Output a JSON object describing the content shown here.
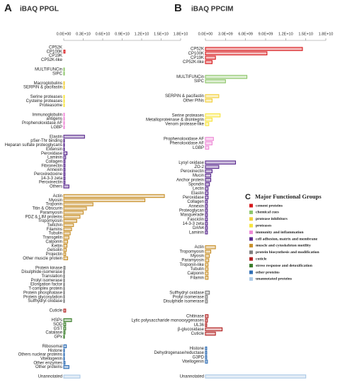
{
  "chart_data": [
    {
      "type": "bar",
      "orientation": "horizontal",
      "panel_label": "A",
      "title": "iBAQ PPGL",
      "xlim": [
        0,
        18000000000
      ],
      "xticks": [
        {
          "value": 0,
          "label": "0.0E+00"
        },
        {
          "value": 3000000000,
          "label": "0.3E+10"
        },
        {
          "value": 6000000000,
          "label": "0.6E+10"
        },
        {
          "value": 9000000000,
          "label": "0.9E+10"
        },
        {
          "value": 12000000000,
          "label": "1.2E+10"
        },
        {
          "value": 15000000000,
          "label": "1.5E+10"
        },
        {
          "value": 18000000000,
          "label": "1.8E+10"
        }
      ],
      "groups": [
        {
          "color": "#d7191c",
          "categories": [
            "CP52K",
            "CP100K",
            "CP19K",
            "CP52K-like"
          ],
          "values": [
            0,
            200000000,
            0,
            0
          ]
        },
        {
          "color": "#8dc66a",
          "categories": [
            "MULTIFUNCin",
            "SIPC"
          ],
          "values": [
            100000000,
            100000000
          ]
        },
        {
          "color": "#f2cf3a",
          "categories": [
            "Macroglobulins",
            "SERPIN & pacifastin"
          ],
          "values": [
            100000000,
            100000000
          ]
        },
        {
          "color": "#f7e43c",
          "categories": [
            "Serine proteases",
            "Cysteine proteases",
            "Proteasome"
          ],
          "values": [
            100000000,
            100000000,
            100000000
          ]
        },
        {
          "color": "#ee88d6",
          "categories": [
            "Immunoglobulin",
            "antigens",
            "Prophenoloxidase AF",
            "LGBP"
          ],
          "values": [
            100000000,
            100000000,
            100000000,
            100000000
          ]
        },
        {
          "color": "#5a2a8e",
          "categories": [
            "Elastin",
            "pSer-Thr binding",
            "Heparan sulfate proteoglycans",
            "Extensin",
            "Peroxidase",
            "Laminin",
            "Collagen",
            "Fibronectin",
            "Annexin",
            "Peroxiredoxine",
            "14-3-3 zeta",
            "Peroxinectin",
            "Others"
          ],
          "values": [
            3200000000,
            100000000,
            100000000,
            100000000,
            500000000,
            300000000,
            200000000,
            200000000,
            200000000,
            200000000,
            200000000,
            200000000,
            800000000
          ]
        },
        {
          "color": "#c8902a",
          "categories": [
            "Actin",
            "Myosin",
            "Troponin",
            "Titin & Obscurin",
            "Paramyosin",
            "PDZ & LIM proteins",
            "Tropomyosin",
            "Twitchin",
            "Filamins",
            "Tubulin",
            "Transgelin",
            "Calponin",
            "Kettin",
            "Gelsolin",
            "Projectin",
            "Other muscle  protein"
          ],
          "values": [
            15500000000,
            12500000000,
            4500000000,
            3500000000,
            3000000000,
            2500000000,
            2000000000,
            1500000000,
            1200000000,
            1000000000,
            800000000,
            600000000,
            500000000,
            400000000,
            300000000,
            600000000
          ]
        },
        {
          "color": "#7f7f7f",
          "categories": [
            "Protein kinase",
            "Disulphide-isomerase",
            "Translation",
            "Prolyl isomerase",
            "Elongation factor",
            "T-complex protein",
            "Protein phosphatase",
            "Protein glycosylation",
            "Sulfhydryl oxidase"
          ],
          "values": [
            200000000,
            100000000,
            100000000,
            100000000,
            100000000,
            100000000,
            100000000,
            100000000,
            100000000
          ]
        },
        {
          "color": "#b22222",
          "categories": [
            "Cuticle"
          ],
          "values": [
            300000000
          ]
        },
        {
          "color": "#3a7d2a",
          "categories": [
            "HSPs",
            "SOD",
            "GST",
            "Catalase",
            "GPx"
          ],
          "values": [
            1200000000,
            300000000,
            300000000,
            200000000,
            100000000
          ]
        },
        {
          "color": "#2e6db4",
          "categories": [
            "Ribosomal",
            "Histone",
            "Others nuclear proteins",
            "Vitellogenin",
            "Other enzymes",
            "Other proteins"
          ],
          "values": [
            400000000,
            100000000,
            100000000,
            100000000,
            200000000,
            800000000
          ]
        },
        {
          "color": "#a9c8e6",
          "categories": [
            "Unannotated"
          ],
          "values": [
            2500000000
          ]
        }
      ]
    },
    {
      "type": "bar",
      "orientation": "horizontal",
      "panel_label": "B",
      "title": "iBAQ PPCIM",
      "xlim": [
        0,
        18000000000
      ],
      "xticks": [
        {
          "value": 0,
          "label": "0.0E+00"
        },
        {
          "value": 3000000000,
          "label": "3.0E+09"
        },
        {
          "value": 6000000000,
          "label": "6.0E+09"
        },
        {
          "value": 9000000000,
          "label": "9.0E+09"
        },
        {
          "value": 12000000000,
          "label": "1.2E+10"
        },
        {
          "value": 15000000000,
          "label": "1.5E+10"
        },
        {
          "value": 18000000000,
          "label": "1.8E+10"
        }
      ],
      "groups": [
        {
          "color": "#d7191c",
          "categories": [
            "CP52K",
            "CP100K",
            "CP19K",
            "CP52K-like"
          ],
          "values": [
            14500000000,
            9200000000,
            1500000000,
            1000000000
          ]
        },
        {
          "color": "#8dc66a",
          "categories": [
            "MULTIFUNCin",
            "SIPC"
          ],
          "values": [
            6200000000,
            3000000000
          ]
        },
        {
          "color": "#f2cf3a",
          "categories": [
            "SERPIN & pacifastin",
            "Other PINs"
          ],
          "values": [
            2000000000,
            1000000000
          ]
        },
        {
          "color": "#f7e43c",
          "categories": [
            "Serine proteases",
            "Metalloproteinase & disintegrin",
            "Venom protease-like"
          ],
          "values": [
            2200000000,
            1000000000,
            500000000
          ]
        },
        {
          "color": "#ee88d6",
          "categories": [
            "Prophenoloxidase AF",
            "Phenoloxidase AF",
            "LGBP"
          ],
          "values": [
            1200000000,
            1000000000,
            500000000
          ]
        },
        {
          "color": "#5a2a8e",
          "categories": [
            "Lysyl oxidase",
            "ZO-2",
            "Peroxinectin",
            "Mucin",
            "Anchor protein",
            "Spondin",
            "Lectin",
            "Elastin",
            "Peroxidase",
            "Collagen",
            "Annexin",
            "Proteoglycan",
            "Masquerade",
            "Fasciclin",
            "14-3-3 zeta",
            "DAN4",
            "Laminin"
          ],
          "values": [
            4500000000,
            2000000000,
            1000000000,
            800000000,
            800000000,
            600000000,
            400000000,
            400000000,
            400000000,
            300000000,
            300000000,
            300000000,
            300000000,
            300000000,
            300000000,
            300000000,
            300000000
          ]
        },
        {
          "color": "#c8902a",
          "categories": [
            "Actin",
            "Tropomyosin",
            "Myosin",
            "Paramyosin",
            "Troponin-like",
            "Tubulin",
            "Calponin",
            "Filamin"
          ],
          "values": [
            1500000000,
            800000000,
            600000000,
            500000000,
            400000000,
            400000000,
            400000000,
            400000000
          ]
        },
        {
          "color": "#7f7f7f",
          "categories": [
            "Sulfhydryl oxidase",
            "Prolyl isomerase",
            "Disulphide isomerase"
          ],
          "values": [
            600000000,
            300000000,
            300000000
          ]
        },
        {
          "color": "#b22222",
          "categories": [
            "Chitinase",
            "Lytic polysaccharide monooxygenases",
            "UL36",
            "β-glucosidase",
            "Cuticle"
          ],
          "values": [
            400000000,
            300000000,
            200000000,
            2500000000,
            1500000000
          ]
        },
        {
          "color": "#2e6db4",
          "categories": [
            "Histone",
            "Dehydrogenase/reductase",
            "G3PD",
            "Vitellogenin"
          ],
          "values": [
            200000000,
            200000000,
            200000000,
            300000000
          ]
        },
        {
          "color": "#a9c8e6",
          "categories": [
            "Unannotated"
          ],
          "values": [
            15000000000
          ]
        }
      ]
    }
  ],
  "legend": {
    "panel_label": "C",
    "title": "Major Functional Groups",
    "items": [
      {
        "label": "cement proteins",
        "color": "#d7191c"
      },
      {
        "label": "chemical cues",
        "color": "#8dc66a"
      },
      {
        "label": "protease inhibitors",
        "color": "#f2cf3a"
      },
      {
        "label": "proteases",
        "color": "#f7e43c"
      },
      {
        "label": "immunity and inflammation",
        "color": "#ee88d6"
      },
      {
        "label": "cell adhesion, matrix and membrane",
        "color": "#5a2a8e"
      },
      {
        "label": "muscle and cytoskeleton motility",
        "color": "#c8902a"
      },
      {
        "label": "protein biosynthesis and modification",
        "color": "#7f7f7f"
      },
      {
        "label": "cuticle",
        "color": "#b22222"
      },
      {
        "label": "stress response and detoxification",
        "color": "#3a7d2a"
      },
      {
        "label": "other proteins",
        "color": "#2e6db4"
      },
      {
        "label": "unannotated proteins",
        "color": "#a9c8e6"
      }
    ]
  }
}
